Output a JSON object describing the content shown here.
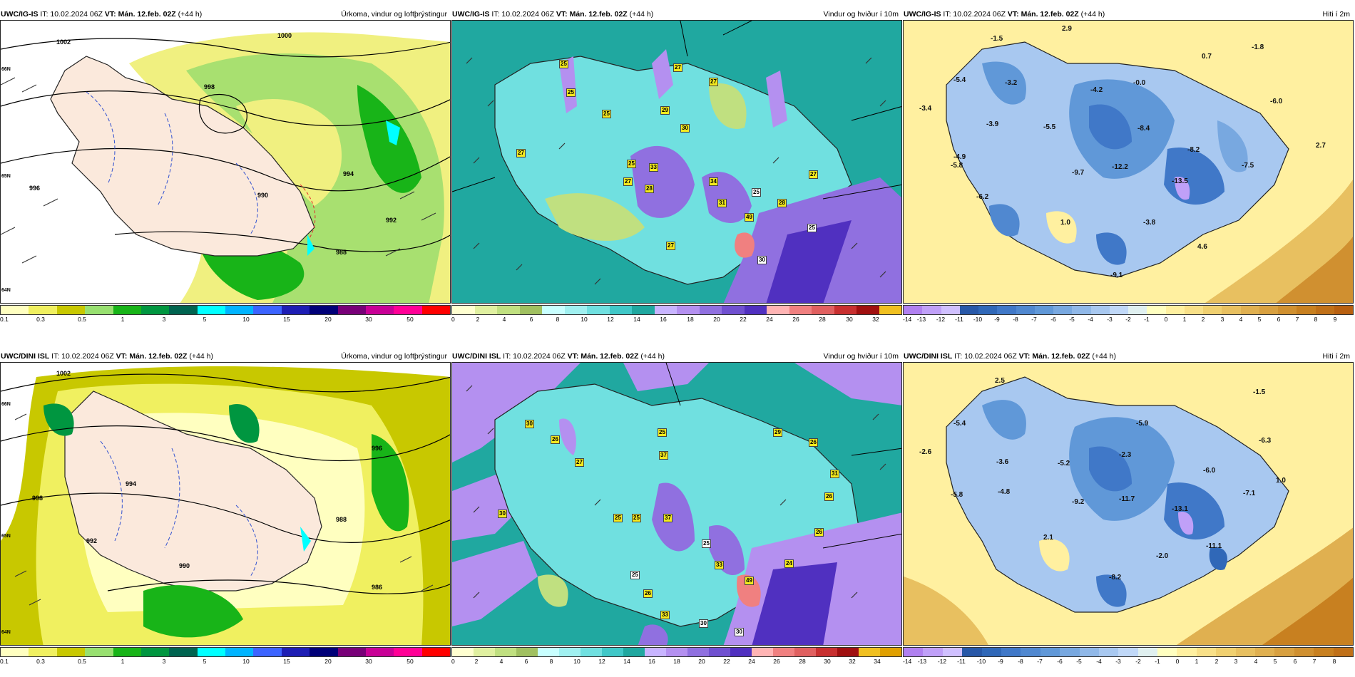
{
  "panels": [
    {
      "model": "UWC/IG-IS",
      "it": "IT: 10.02.2024 06Z",
      "vt_label": "VT:",
      "vt": "Mán. 12.feb. 02Z",
      "lead": "(+44 h)",
      "title": "Úrkoma, vindur og loftþrýstingur"
    },
    {
      "model": "UWC/IG-IS",
      "it": "IT: 10.02.2024 06Z",
      "vt_label": "VT:",
      "vt": "Mán. 12.feb. 02Z",
      "lead": "(+44 h)",
      "title": "Vindur og hviður í 10m"
    },
    {
      "model": "UWC/IG-IS",
      "it": "IT: 10.02.2024 06Z",
      "vt_label": "VT:",
      "vt": "Mán. 12.feb. 02Z",
      "lead": "(+44 h)",
      "title": "Hiti í 2m"
    },
    {
      "model": "UWC/DINI ISL",
      "it": "IT: 10.02.2024 06Z",
      "vt_label": "VT:",
      "vt": "Mán. 12.feb. 02Z",
      "lead": "(+44 h)",
      "title": "Úrkoma, vindur og loftþrýstingur"
    },
    {
      "model": "UWC/DINI ISL",
      "it": "IT: 10.02.2024 06Z",
      "vt_label": "VT:",
      "vt": "Mán. 12.feb. 02Z",
      "lead": "(+44 h)",
      "title": "Vindur og hviður í 10m"
    },
    {
      "model": "UWC/DINI ISL",
      "it": "IT: 10.02.2024 06Z",
      "vt_label": "VT:",
      "vt": "Mán. 12.feb. 02Z",
      "lead": "(+44 h)",
      "title": "Hiti í 2m"
    }
  ],
  "legends": {
    "precip": {
      "colors": [
        "#ffffc0",
        "#f0f060",
        "#c8c800",
        "#98e070",
        "#18b418",
        "#009640",
        "#006450",
        "#00ffff",
        "#00b4ff",
        "#3c64ff",
        "#1e1eb4",
        "#000078",
        "#780078",
        "#c80096",
        "#ff0096",
        "#ff0000"
      ],
      "ticks": [
        "0.1",
        "0.3",
        "0.5",
        "1",
        "3",
        "5",
        "10",
        "15",
        "20",
        "30",
        "50"
      ]
    },
    "wind_top": {
      "colors": [
        "#ffffd0",
        "#e0f0a0",
        "#c0e080",
        "#a0c060",
        "#c8ffff",
        "#a0f0f0",
        "#70e0e0",
        "#40c8c8",
        "#20a8a0",
        "#c8b4ff",
        "#b490f0",
        "#9070e0",
        "#7050d0",
        "#5030c0",
        "#ffb4b4",
        "#f08080",
        "#e06060",
        "#c83030",
        "#a01010",
        "#f0c020"
      ],
      "ticks": [
        "0",
        "2",
        "4",
        "6",
        "8",
        "10",
        "12",
        "14",
        "16",
        "18",
        "20",
        "22",
        "24",
        "26",
        "28",
        "30",
        "32"
      ]
    },
    "wind_bottom": {
      "colors": [
        "#ffffd0",
        "#e0f0a0",
        "#c0e080",
        "#a0c060",
        "#c8ffff",
        "#a0f0f0",
        "#70e0e0",
        "#40c8c8",
        "#20a8a0",
        "#c8b4ff",
        "#b490f0",
        "#9070e0",
        "#7050d0",
        "#5030c0",
        "#ffb4b4",
        "#f08080",
        "#e06060",
        "#c83030",
        "#a01010",
        "#f0c020",
        "#e0a000"
      ],
      "ticks": [
        "0",
        "2",
        "4",
        "6",
        "8",
        "10",
        "12",
        "14",
        "16",
        "18",
        "20",
        "22",
        "24",
        "26",
        "28",
        "30",
        "32",
        "34"
      ]
    },
    "temp_top": {
      "colors": [
        "#b080f0",
        "#c0a0f8",
        "#d0c0ff",
        "#2858a8",
        "#3068b8",
        "#4078c8",
        "#5088d0",
        "#6098d8",
        "#78a8e0",
        "#90b8e8",
        "#a8c8f0",
        "#c0d8f8",
        "#e0f0f0",
        "#ffffc0",
        "#fff0a0",
        "#f8e088",
        "#f0d070",
        "#e8c060",
        "#e0b050",
        "#d8a040",
        "#d09030",
        "#c88020",
        "#c07018",
        "#b86010"
      ],
      "ticks": [
        "-14",
        "-13",
        "-12",
        "-11",
        "-10",
        "-9",
        "-8",
        "-7",
        "-6",
        "-5",
        "-4",
        "-3",
        "-2",
        "-1",
        "0",
        "1",
        "2",
        "3",
        "4",
        "5",
        "6",
        "7",
        "8",
        "9"
      ]
    },
    "temp_bottom": {
      "colors": [
        "#b080f0",
        "#c0a0f8",
        "#d0c0ff",
        "#2858a8",
        "#3068b8",
        "#4078c8",
        "#5088d0",
        "#6098d8",
        "#78a8e0",
        "#90b8e8",
        "#a8c8f0",
        "#c0d8f8",
        "#e0f0f0",
        "#ffffc0",
        "#fff0a0",
        "#f8e088",
        "#f0d070",
        "#e8c060",
        "#e0b050",
        "#d8a040",
        "#d09030",
        "#c88020",
        "#c07018"
      ],
      "ticks": [
        "-14",
        "-13",
        "-12",
        "-11",
        "-10",
        "-9",
        "-8",
        "-7",
        "-6",
        "-5",
        "-4",
        "-3",
        "-2",
        "-1",
        "0",
        "1",
        "2",
        "3",
        "4",
        "5",
        "6",
        "7",
        "8"
      ]
    }
  },
  "labels": {
    "p0_isobars": [
      "1002",
      "1000",
      "998",
      "996",
      "994",
      "992",
      "990",
      "988"
    ],
    "p0_lat": [
      "66N",
      "65N",
      "64N"
    ],
    "p1_gusts": [
      "25",
      "27",
      "27",
      "25",
      "25",
      "29",
      "30",
      "27",
      "25",
      "33",
      "27",
      "28",
      "34",
      "31",
      "27",
      "49",
      "28",
      "25",
      "27",
      "30",
      "25"
    ],
    "p2_temps": [
      "2.9",
      "-1.5",
      "0.7",
      "-1.8",
      "-5.4",
      "-3.2",
      "-4.2",
      "-0.0",
      "-3.4",
      "-3.9",
      "-5.5",
      "-8.4",
      "-6.0",
      "-4.9",
      "-8.2",
      "2.7",
      "-5.8",
      "-9.7",
      "-12.2",
      "-7.5",
      "-6.2",
      "-13.5",
      "1.0",
      "-3.8",
      "4.6",
      "-9.1"
    ],
    "p3_isobars": [
      "1002",
      "998",
      "996",
      "994",
      "992",
      "990",
      "988",
      "986"
    ],
    "p3_lat": [
      "66N",
      "65N",
      "64N"
    ],
    "p4_gusts": [
      "30",
      "26",
      "25",
      "29",
      "26",
      "27",
      "37",
      "31",
      "30",
      "25",
      "25",
      "37",
      "26",
      "25",
      "26",
      "33",
      "24",
      "49",
      "25",
      "26",
      "33",
      "30",
      "30"
    ],
    "p5_temps": [
      "2.5",
      "-1.5",
      "-5.4",
      "-5.9",
      "-2.6",
      "-3.6",
      "-5.2",
      "-2.3",
      "-6.3",
      "-6.0",
      "1.0",
      "-5.8",
      "-4.8",
      "-9.2",
      "-11.7",
      "-13.1",
      "-7.1",
      "2.1",
      "-2.0",
      "-11.1",
      "-8.2"
    ]
  }
}
